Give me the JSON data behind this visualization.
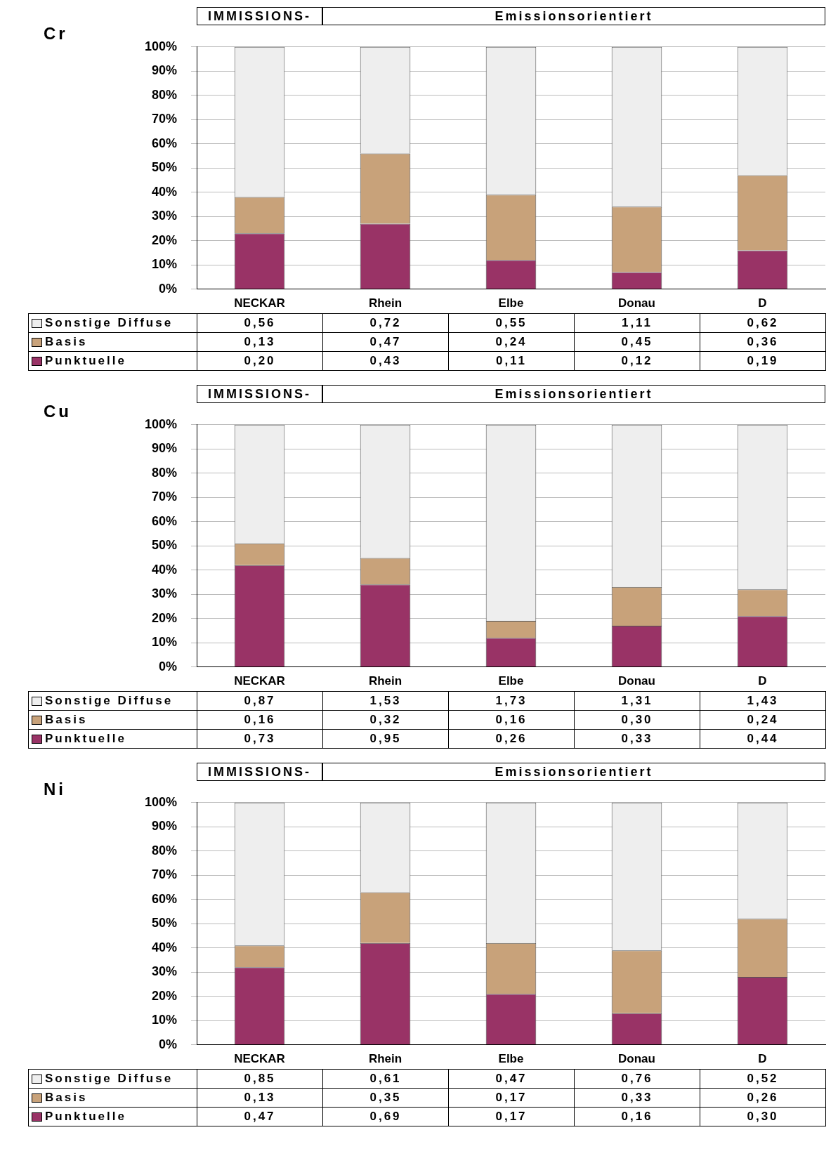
{
  "chart_data": [
    {
      "type": "bar",
      "title": "Cr",
      "stacked": true,
      "grid": "y",
      "legend": "bottom",
      "annotations": [
        "IMMISSIONS-",
        "Emissionsorientiert",
        "0,56",
        "0,72",
        "0,55",
        "1,11",
        "0,62",
        "0,13",
        "0,47",
        "0,24",
        "0,45",
        "0,36",
        "0,20",
        "0,43",
        "0,11",
        "0,12",
        "0,19"
      ],
      "categories": [
        "NECKAR",
        "Rhein",
        "Elbe",
        "Donau",
        "D"
      ],
      "ylim": [
        0,
        100
      ],
      "yticks": [
        {
          "value": 0,
          "label": "0%"
        },
        {
          "value": 10,
          "label": "10%"
        },
        {
          "value": 20,
          "label": "20%"
        },
        {
          "value": 30,
          "label": "30%"
        },
        {
          "value": 40,
          "label": "40%"
        },
        {
          "value": 50,
          "label": "50%"
        },
        {
          "value": 60,
          "label": "60%"
        },
        {
          "value": 70,
          "label": "70%"
        },
        {
          "value": 80,
          "label": "80%"
        },
        {
          "value": 90,
          "label": "90%"
        },
        {
          "value": 100,
          "label": "100%"
        }
      ],
      "series": [
        {
          "name": "Punktuelle",
          "color": "#993366",
          "values": [
            23,
            27,
            12,
            7,
            16
          ]
        },
        {
          "name": "Basis",
          "color": "#c8a27a",
          "values": [
            15,
            29,
            27,
            27,
            31
          ]
        },
        {
          "name": "Sonstige Diffuse",
          "color": "#eeeeee",
          "values": [
            62,
            44,
            61,
            66,
            53
          ]
        }
      ]
    },
    {
      "type": "bar",
      "title": "Cu",
      "stacked": true,
      "grid": "y",
      "legend": "bottom",
      "annotations": [
        "IMMISSIONS-",
        "Emissionsorientiert",
        "0,87",
        "1,53",
        "1,73",
        "1,31",
        "1,43",
        "0,16",
        "0,32",
        "0,16",
        "0,30",
        "0,24",
        "0,73",
        "0,95",
        "0,26",
        "0,33",
        "0,44"
      ],
      "categories": [
        "NECKAR",
        "Rhein",
        "Elbe",
        "Donau",
        "D"
      ],
      "ylim": [
        0,
        100
      ],
      "yticks": [
        {
          "value": 0,
          "label": "0%"
        },
        {
          "value": 10,
          "label": "10%"
        },
        {
          "value": 20,
          "label": "20%"
        },
        {
          "value": 30,
          "label": "30%"
        },
        {
          "value": 40,
          "label": "40%"
        },
        {
          "value": 50,
          "label": "50%"
        },
        {
          "value": 60,
          "label": "60%"
        },
        {
          "value": 70,
          "label": "70%"
        },
        {
          "value": 80,
          "label": "80%"
        },
        {
          "value": 90,
          "label": "90%"
        },
        {
          "value": 100,
          "label": "100%"
        }
      ],
      "series": [
        {
          "name": "Punktuelle",
          "color": "#993366",
          "values": [
            42,
            34,
            12,
            17,
            21
          ]
        },
        {
          "name": "Basis",
          "color": "#c8a27a",
          "values": [
            9,
            11,
            7,
            16,
            11
          ]
        },
        {
          "name": "Sonstige Diffuse",
          "color": "#eeeeee",
          "values": [
            49,
            55,
            81,
            67,
            68
          ]
        }
      ]
    },
    {
      "type": "bar",
      "title": "Ni",
      "stacked": true,
      "grid": "y",
      "legend": "bottom",
      "annotations": [
        "IMMISSIONS-",
        "Emissionsorientiert",
        "0,85",
        "0,61",
        "0,47",
        "0,76",
        "0,52",
        "0,13",
        "0,35",
        "0,17",
        "0,33",
        "0,26",
        "0,47",
        "0,69",
        "0,17",
        "0,16",
        "0,30"
      ],
      "categories": [
        "NECKAR",
        "Rhein",
        "Elbe",
        "Donau",
        "D"
      ],
      "ylim": [
        0,
        100
      ],
      "yticks": [
        {
          "value": 0,
          "label": "0%"
        },
        {
          "value": 10,
          "label": "10%"
        },
        {
          "value": 20,
          "label": "20%"
        },
        {
          "value": 30,
          "label": "30%"
        },
        {
          "value": 40,
          "label": "40%"
        },
        {
          "value": 50,
          "label": "50%"
        },
        {
          "value": 60,
          "label": "60%"
        },
        {
          "value": 70,
          "label": "70%"
        },
        {
          "value": 80,
          "label": "80%"
        },
        {
          "value": 90,
          "label": "90%"
        },
        {
          "value": 100,
          "label": "100%"
        }
      ],
      "series": [
        {
          "name": "Punktuelle",
          "color": "#993366",
          "values": [
            32,
            42,
            21,
            13,
            28
          ]
        },
        {
          "name": "Basis",
          "color": "#c8a27a",
          "values": [
            9,
            21,
            21,
            26,
            24
          ]
        },
        {
          "name": "Sonstige Diffuse",
          "color": "#eeeeee",
          "values": [
            59,
            37,
            58,
            61,
            48
          ]
        }
      ]
    }
  ]
}
